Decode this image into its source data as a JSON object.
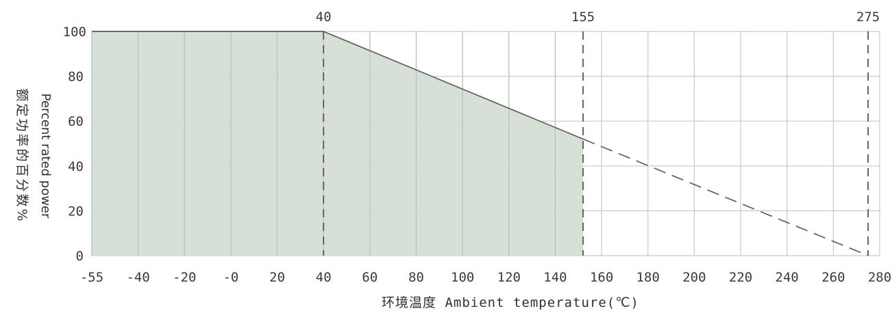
{
  "chart_data": {
    "type": "area",
    "xlabel": "环境温度 Ambient temperature(℃)",
    "ylabel_en": "Percent rated power",
    "ylabel_zh": "额定功率的百分数%",
    "x_ticks": [
      "-55",
      "-40",
      "-20",
      "-0",
      "20",
      "40",
      "60",
      "80",
      "100",
      "120",
      "140",
      "160",
      "180",
      "200",
      "220",
      "240",
      "260",
      "280"
    ],
    "y_ticks": [
      "100",
      "80",
      "60",
      "40",
      "20",
      "0"
    ],
    "top_labels": [
      {
        "label": "40",
        "x": 40
      },
      {
        "label": "155",
        "x": 152
      },
      {
        "label": "275",
        "x": 275
      }
    ],
    "series": [
      {
        "style": "solid",
        "points": [
          [
            -55,
            100
          ],
          [
            40,
            100
          ],
          [
            152,
            52
          ]
        ],
        "fill": true
      },
      {
        "style": "dashed",
        "points": [
          [
            152,
            52
          ],
          [
            275,
            0
          ]
        ]
      }
    ],
    "ylim": [
      0,
      100
    ],
    "grid": true,
    "colors": {
      "fill": "#d4ddd2",
      "line": "#666666",
      "grid": "#c9c9c9"
    }
  }
}
